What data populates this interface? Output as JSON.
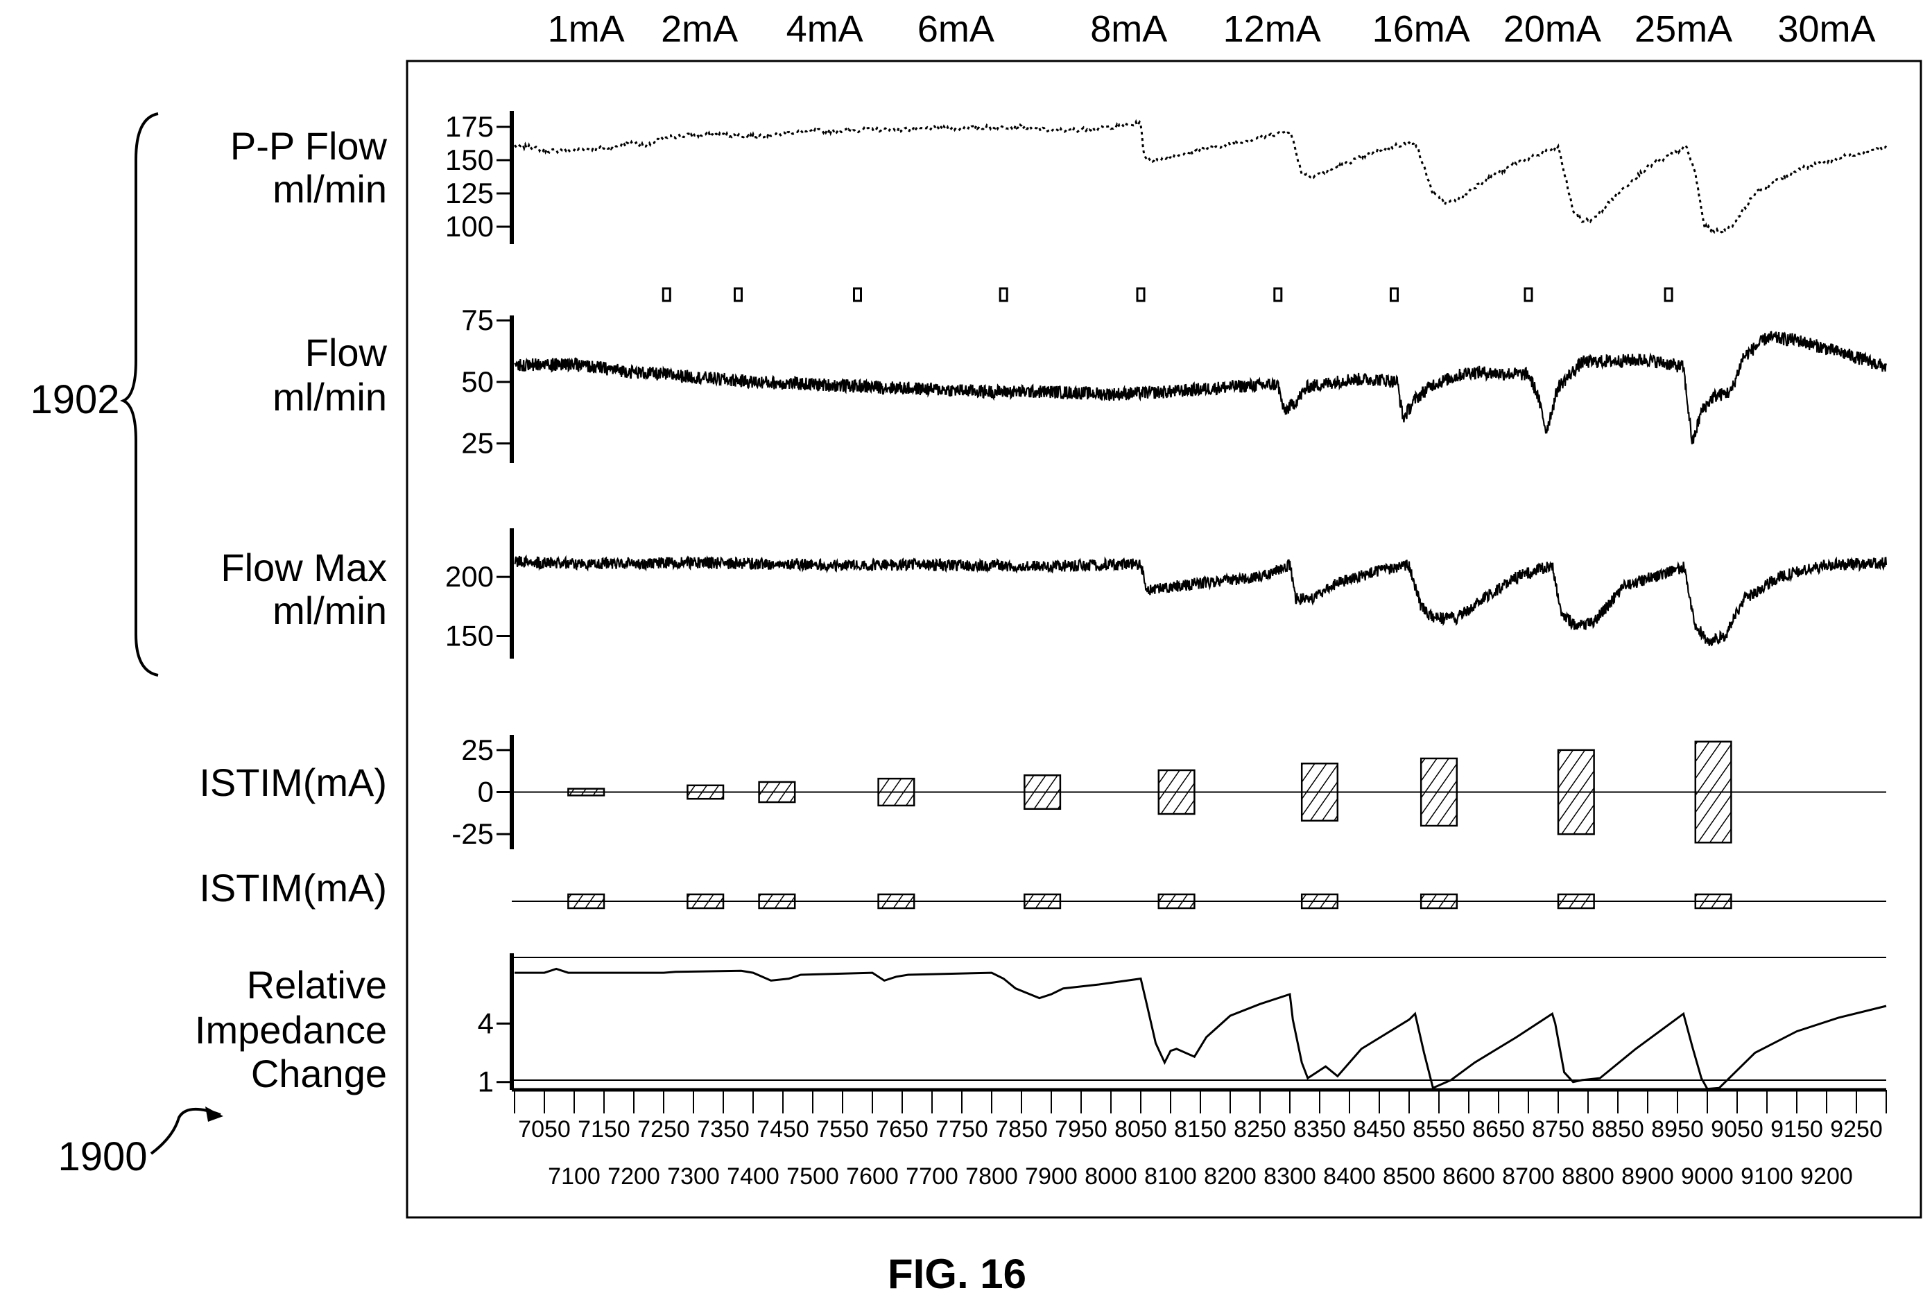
{
  "figure": {
    "caption": "FIG. 16",
    "ref_panel": "1902",
    "ref_figure": "1900"
  },
  "chart_data": {
    "type": "line",
    "x": {
      "min": 7000,
      "max": 9300,
      "labels_upper": [
        7050,
        7150,
        7250,
        7350,
        7450,
        7550,
        7650,
        7750,
        7850,
        7950,
        8050,
        8150,
        8250,
        8350,
        8450,
        8550,
        8650,
        8750,
        8850,
        8950,
        9050,
        9150,
        9250
      ],
      "labels_lower": [
        7100,
        7200,
        7300,
        7400,
        7500,
        7600,
        7700,
        7800,
        7900,
        8000,
        8100,
        8200,
        8300,
        8400,
        8500,
        8600,
        8700,
        8800,
        8900,
        9000,
        9100,
        9200
      ]
    },
    "current_labels": [
      {
        "label": "1mA",
        "x": 7120
      },
      {
        "label": "2mA",
        "x": 7310
      },
      {
        "label": "4mA",
        "x": 7520
      },
      {
        "label": "6mA",
        "x": 7740
      },
      {
        "label": "8mA",
        "x": 8030
      },
      {
        "label": "12mA",
        "x": 8270
      },
      {
        "label": "16mA",
        "x": 8520
      },
      {
        "label": "20mA",
        "x": 8740
      },
      {
        "label": "25mA",
        "x": 8960
      },
      {
        "label": "30mA",
        "x": 9200
      }
    ],
    "stimulation_events": [
      {
        "start": 7090,
        "end": 7150,
        "current": 2
      },
      {
        "start": 7290,
        "end": 7350,
        "current": 4
      },
      {
        "start": 7410,
        "end": 7470,
        "current": 6
      },
      {
        "start": 7610,
        "end": 7670,
        "current": 8
      },
      {
        "start": 7855,
        "end": 7915,
        "current": 10
      },
      {
        "start": 8080,
        "end": 8140,
        "current": 13
      },
      {
        "start": 8320,
        "end": 8380,
        "current": 17
      },
      {
        "start": 8520,
        "end": 8580,
        "current": 20
      },
      {
        "start": 8750,
        "end": 8810,
        "current": 25
      },
      {
        "start": 8980,
        "end": 9040,
        "current": 30
      }
    ],
    "event_markers_x": [
      7255,
      7375,
      7575,
      7820,
      8050,
      8280,
      8475,
      8700,
      8935
    ],
    "panels": [
      {
        "name": "pp-flow",
        "label_lines": [
          "P-P Flow",
          "ml/min"
        ],
        "style": "dashed",
        "y_ticks": [
          175,
          150,
          125,
          100
        ],
        "y_min": 87,
        "y_max": 187,
        "points": [
          [
            7000,
            161
          ],
          [
            7020,
            160
          ],
          [
            7060,
            157
          ],
          [
            7100,
            158
          ],
          [
            7150,
            159
          ],
          [
            7200,
            163
          ],
          [
            7220,
            160
          ],
          [
            7250,
            167
          ],
          [
            7300,
            169
          ],
          [
            7350,
            169
          ],
          [
            7400,
            168
          ],
          [
            7450,
            170
          ],
          [
            7500,
            172
          ],
          [
            7550,
            172
          ],
          [
            7600,
            173
          ],
          [
            7650,
            173
          ],
          [
            7700,
            174
          ],
          [
            7750,
            174
          ],
          [
            7800,
            175
          ],
          [
            7850,
            175
          ],
          [
            7900,
            172
          ],
          [
            7950,
            173
          ],
          [
            8000,
            175
          ],
          [
            8030,
            176
          ],
          [
            8050,
            178
          ],
          [
            8055,
            153
          ],
          [
            8070,
            150
          ],
          [
            8100,
            152
          ],
          [
            8150,
            158
          ],
          [
            8200,
            162
          ],
          [
            8250,
            167
          ],
          [
            8300,
            172
          ],
          [
            8305,
            165
          ],
          [
            8320,
            140
          ],
          [
            8340,
            138
          ],
          [
            8380,
            145
          ],
          [
            8450,
            158
          ],
          [
            8500,
            163
          ],
          [
            8510,
            164
          ],
          [
            8540,
            125
          ],
          [
            8560,
            118
          ],
          [
            8580,
            120
          ],
          [
            8620,
            133
          ],
          [
            8680,
            148
          ],
          [
            8740,
            158
          ],
          [
            8750,
            160
          ],
          [
            8775,
            112
          ],
          [
            8790,
            104
          ],
          [
            8810,
            106
          ],
          [
            8850,
            125
          ],
          [
            8900,
            145
          ],
          [
            8965,
            160
          ],
          [
            8980,
            140
          ],
          [
            8995,
            100
          ],
          [
            9020,
            96
          ],
          [
            9040,
            100
          ],
          [
            9080,
            125
          ],
          [
            9150,
            143
          ],
          [
            9250,
            155
          ],
          [
            9300,
            160
          ]
        ]
      },
      {
        "name": "flow",
        "label_lines": [
          "Flow",
          "ml/min"
        ],
        "style": "noisy",
        "y_ticks": [
          75,
          50,
          25
        ],
        "y_min": 17,
        "y_max": 77,
        "points": [
          [
            7000,
            57
          ],
          [
            7100,
            57
          ],
          [
            7200,
            54
          ],
          [
            7300,
            52
          ],
          [
            7400,
            50
          ],
          [
            7500,
            49
          ],
          [
            7600,
            48
          ],
          [
            7700,
            47
          ],
          [
            7800,
            46
          ],
          [
            7900,
            46
          ],
          [
            8000,
            45
          ],
          [
            8100,
            46
          ],
          [
            8200,
            48
          ],
          [
            8280,
            49
          ],
          [
            8290,
            38
          ],
          [
            8310,
            42
          ],
          [
            8330,
            48
          ],
          [
            8400,
            51
          ],
          [
            8450,
            51
          ],
          [
            8480,
            50
          ],
          [
            8490,
            35
          ],
          [
            8510,
            43
          ],
          [
            8540,
            49
          ],
          [
            8600,
            54
          ],
          [
            8700,
            53
          ],
          [
            8715,
            45
          ],
          [
            8730,
            30
          ],
          [
            8750,
            48
          ],
          [
            8790,
            58
          ],
          [
            8900,
            59
          ],
          [
            8960,
            56
          ],
          [
            8965,
            45
          ],
          [
            8975,
            25
          ],
          [
            8990,
            38
          ],
          [
            9010,
            44
          ],
          [
            9040,
            46
          ],
          [
            9060,
            60
          ],
          [
            9100,
            68
          ],
          [
            9150,
            67
          ],
          [
            9250,
            60
          ],
          [
            9300,
            56
          ]
        ]
      },
      {
        "name": "flow-max",
        "label_lines": [
          "Flow Max",
          "ml/min"
        ],
        "style": "noisy",
        "y_ticks": [
          200,
          150
        ],
        "y_min": 131,
        "y_max": 241,
        "points": [
          [
            7000,
            213
          ],
          [
            7100,
            211
          ],
          [
            7300,
            212
          ],
          [
            7500,
            210
          ],
          [
            7700,
            210
          ],
          [
            7900,
            209
          ],
          [
            8050,
            211
          ],
          [
            8060,
            188
          ],
          [
            8080,
            190
          ],
          [
            8150,
            195
          ],
          [
            8250,
            200
          ],
          [
            8300,
            210
          ],
          [
            8310,
            182
          ],
          [
            8330,
            180
          ],
          [
            8380,
            195
          ],
          [
            8450,
            205
          ],
          [
            8500,
            210
          ],
          [
            8520,
            175
          ],
          [
            8540,
            165
          ],
          [
            8580,
            165
          ],
          [
            8620,
            180
          ],
          [
            8680,
            200
          ],
          [
            8740,
            210
          ],
          [
            8755,
            170
          ],
          [
            8780,
            158
          ],
          [
            8810,
            162
          ],
          [
            8860,
            192
          ],
          [
            8940,
            205
          ],
          [
            8960,
            208
          ],
          [
            8980,
            160
          ],
          [
            9000,
            145
          ],
          [
            9030,
            150
          ],
          [
            9060,
            180
          ],
          [
            9120,
            200
          ],
          [
            9200,
            210
          ],
          [
            9300,
            212
          ]
        ]
      },
      {
        "name": "istim-amplitude",
        "label_lines": [
          "ISTIM(mA)"
        ],
        "style": "bars",
        "y_ticks": [
          25,
          0,
          -25
        ],
        "y_min": -34,
        "y_max": 34
      },
      {
        "name": "istim-timing",
        "label_lines": [
          "ISTIM(mA)"
        ],
        "style": "boxes"
      },
      {
        "name": "relative-impedance",
        "label_lines": [
          "Relative",
          "Impedance",
          "Change"
        ],
        "style": "solid",
        "y_ticks": [
          4,
          1
        ],
        "y_min": 0.6,
        "y_max": 7.6,
        "points": [
          [
            7000,
            6.6
          ],
          [
            7050,
            6.6
          ],
          [
            7070,
            6.8
          ],
          [
            7090,
            6.6
          ],
          [
            7250,
            6.6
          ],
          [
            7270,
            6.65
          ],
          [
            7380,
            6.7
          ],
          [
            7400,
            6.6
          ],
          [
            7430,
            6.2
          ],
          [
            7460,
            6.3
          ],
          [
            7480,
            6.5
          ],
          [
            7600,
            6.6
          ],
          [
            7620,
            6.2
          ],
          [
            7640,
            6.4
          ],
          [
            7660,
            6.5
          ],
          [
            7800,
            6.6
          ],
          [
            7820,
            6.3
          ],
          [
            7840,
            5.8
          ],
          [
            7880,
            5.3
          ],
          [
            7900,
            5.5
          ],
          [
            7920,
            5.8
          ],
          [
            7980,
            6.0
          ],
          [
            8050,
            6.3
          ],
          [
            8060,
            5.0
          ],
          [
            8075,
            3.0
          ],
          [
            8090,
            2.0
          ],
          [
            8100,
            2.6
          ],
          [
            8110,
            2.7
          ],
          [
            8140,
            2.3
          ],
          [
            8160,
            3.3
          ],
          [
            8200,
            4.4
          ],
          [
            8250,
            5.0
          ],
          [
            8300,
            5.5
          ],
          [
            8305,
            4.2
          ],
          [
            8320,
            2.0
          ],
          [
            8330,
            1.2
          ],
          [
            8345,
            1.5
          ],
          [
            8360,
            1.8
          ],
          [
            8380,
            1.3
          ],
          [
            8420,
            2.7
          ],
          [
            8500,
            4.2
          ],
          [
            8510,
            4.5
          ],
          [
            8525,
            2.5
          ],
          [
            8540,
            0.7
          ],
          [
            8555,
            0.9
          ],
          [
            8570,
            1.1
          ],
          [
            8610,
            2.0
          ],
          [
            8680,
            3.3
          ],
          [
            8740,
            4.5
          ],
          [
            8745,
            4.0
          ],
          [
            8760,
            1.5
          ],
          [
            8775,
            1.0
          ],
          [
            8790,
            1.1
          ],
          [
            8820,
            1.2
          ],
          [
            8880,
            2.7
          ],
          [
            8960,
            4.5
          ],
          [
            8975,
            2.8
          ],
          [
            8990,
            1.2
          ],
          [
            9000,
            0.65
          ],
          [
            9020,
            0.7
          ],
          [
            9040,
            1.3
          ],
          [
            9080,
            2.5
          ],
          [
            9150,
            3.6
          ],
          [
            9220,
            4.3
          ],
          [
            9300,
            4.9
          ]
        ]
      }
    ]
  }
}
